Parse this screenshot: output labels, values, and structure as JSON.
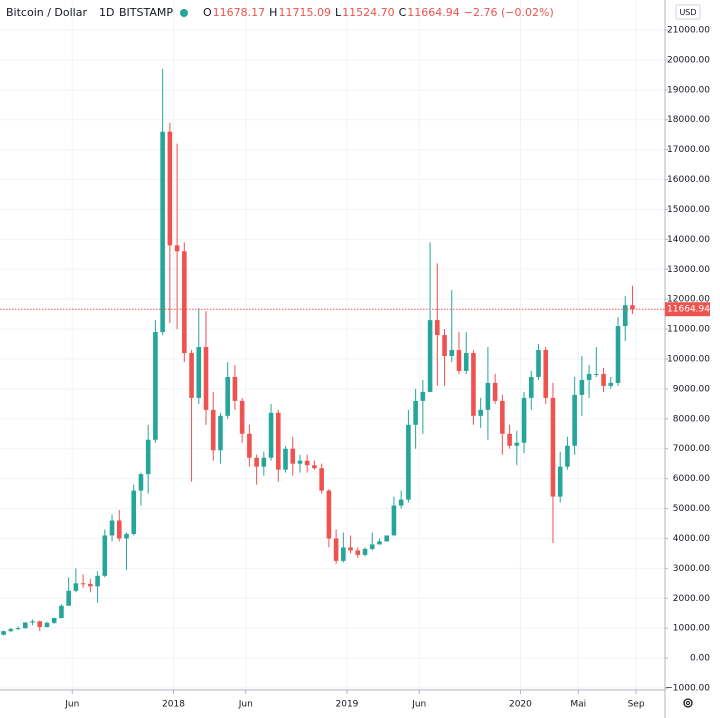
{
  "chart_data": {
    "type": "candlestick",
    "header": {
      "symbol": "Bitcoin / Dollar",
      "interval": "1D",
      "exchange": "BITSTAMP",
      "ohlc": [
        {
          "label": "O",
          "value": "11678.17"
        },
        {
          "label": "H",
          "value": "11715.09"
        },
        {
          "label": "L",
          "value": "11524.70"
        },
        {
          "label": "C",
          "value": "11664.94"
        }
      ],
      "change": "−2.76 (−0.02%)"
    },
    "currency": "USD",
    "up_color": "#26a69a",
    "down_color": "#ef5350",
    "grid": true,
    "last_price": 11664.94,
    "last_price_label": "11664.94",
    "categories": [
      null,
      null,
      null,
      null,
      null,
      null,
      null,
      null,
      null,
      null,
      null,
      null,
      null,
      null,
      null,
      null,
      null,
      null,
      null,
      null,
      null,
      null,
      null,
      null,
      null,
      null,
      null,
      null,
      null,
      null,
      null,
      null,
      null,
      null,
      null,
      null,
      null,
      null,
      null,
      null,
      null,
      null,
      null,
      null,
      null,
      null,
      null,
      null,
      null,
      null,
      null,
      null,
      null,
      null,
      null,
      null,
      null,
      null,
      null,
      null,
      null,
      null,
      null,
      null,
      null,
      null,
      null,
      null,
      null,
      null,
      null,
      null,
      null,
      null,
      null,
      null,
      null,
      null,
      null,
      null,
      null,
      null,
      null,
      null,
      null,
      null,
      null,
      null
    ],
    "values": [
      [
        780,
        920,
        760,
        900
      ],
      [
        900,
        1010,
        880,
        970
      ],
      [
        970,
        1060,
        940,
        1000
      ],
      [
        1000,
        1200,
        990,
        1190
      ],
      [
        1190,
        1290,
        1100,
        1230
      ],
      [
        1230,
        1250,
        900,
        1040
      ],
      [
        1040,
        1220,
        1020,
        1180
      ],
      [
        1180,
        1350,
        1140,
        1340
      ],
      [
        1340,
        1800,
        1330,
        1750
      ],
      [
        1750,
        2700,
        1750,
        2250
      ],
      [
        2250,
        3000,
        2200,
        2500
      ],
      [
        2500,
        2800,
        2350,
        2480
      ],
      [
        2480,
        2650,
        2200,
        2400
      ],
      [
        2400,
        2900,
        1850,
        2750
      ],
      [
        2750,
        4300,
        2700,
        4100
      ],
      [
        4100,
        4800,
        3900,
        4600
      ],
      [
        4600,
        4950,
        3900,
        4000
      ],
      [
        4000,
        4200,
        2950,
        4150
      ],
      [
        4150,
        5800,
        4100,
        5600
      ],
      [
        5600,
        6200,
        5100,
        6150
      ],
      [
        6150,
        7800,
        5500,
        7300
      ],
      [
        7300,
        11300,
        7200,
        10900
      ],
      [
        10900,
        19700,
        10800,
        17600
      ],
      [
        17600,
        17900,
        11200,
        13800
      ],
      [
        13800,
        17200,
        11000,
        13600
      ],
      [
        13600,
        13900,
        9900,
        10200
      ],
      [
        10200,
        10300,
        5900,
        8700
      ],
      [
        8700,
        11700,
        8500,
        10400
      ],
      [
        10400,
        11600,
        7800,
        8300
      ],
      [
        8300,
        8900,
        6600,
        6950
      ],
      [
        6950,
        8200,
        6500,
        8100
      ],
      [
        8100,
        9900,
        8000,
        9400
      ],
      [
        9400,
        9800,
        8300,
        8600
      ],
      [
        8600,
        8700,
        7200,
        7500
      ],
      [
        7500,
        7800,
        6400,
        6700
      ],
      [
        6700,
        6800,
        5800,
        6400
      ],
      [
        6400,
        6900,
        6100,
        6700
      ],
      [
        6700,
        8500,
        6600,
        8200
      ],
      [
        8200,
        8300,
        5900,
        6300
      ],
      [
        6300,
        7100,
        6200,
        7000
      ],
      [
        7000,
        7400,
        6100,
        6500
      ],
      [
        6500,
        6800,
        6200,
        6600
      ],
      [
        6600,
        6800,
        6200,
        6450
      ],
      [
        6450,
        6600,
        6300,
        6350
      ],
      [
        6350,
        6500,
        5500,
        5600
      ],
      [
        5600,
        5650,
        3700,
        4000
      ],
      [
        4000,
        4300,
        3150,
        3250
      ],
      [
        3250,
        4200,
        3200,
        3700
      ],
      [
        3700,
        4100,
        3500,
        3600
      ],
      [
        3600,
        3700,
        3350,
        3450
      ],
      [
        3450,
        3700,
        3400,
        3650
      ],
      [
        3650,
        4200,
        3600,
        3800
      ],
      [
        3800,
        4000,
        3800,
        3900
      ],
      [
        3900,
        4100,
        3900,
        4100
      ],
      [
        4100,
        5400,
        4100,
        5100
      ],
      [
        5100,
        5600,
        5000,
        5300
      ],
      [
        5300,
        8300,
        5200,
        7800
      ],
      [
        7800,
        9000,
        7000,
        8600
      ],
      [
        8600,
        9300,
        7500,
        8900
      ],
      [
        8900,
        13900,
        8900,
        11300
      ],
      [
        11300,
        13200,
        9100,
        10800
      ],
      [
        10800,
        11000,
        9100,
        10100
      ],
      [
        10100,
        12300,
        9900,
        10300
      ],
      [
        10300,
        10900,
        9500,
        9600
      ],
      [
        9600,
        10900,
        9500,
        10200
      ],
      [
        10200,
        10300,
        7800,
        8100
      ],
      [
        8100,
        8700,
        7700,
        8300
      ],
      [
        8300,
        10400,
        7300,
        9200
      ],
      [
        9200,
        9500,
        8500,
        8600
      ],
      [
        8600,
        8800,
        6800,
        7500
      ],
      [
        7500,
        7800,
        7000,
        7100
      ],
      [
        7100,
        7600,
        6450,
        7200
      ],
      [
        7200,
        8900,
        6850,
        8700
      ],
      [
        8700,
        9600,
        8300,
        9400
      ],
      [
        9400,
        10500,
        9300,
        10300
      ],
      [
        10300,
        10400,
        8500,
        8700
      ],
      [
        8700,
        9200,
        3850,
        5400
      ],
      [
        5400,
        6900,
        5200,
        6400
      ],
      [
        6400,
        7400,
        6300,
        7100
      ],
      [
        7100,
        9400,
        6800,
        8800
      ],
      [
        8800,
        10100,
        8100,
        9300
      ],
      [
        9300,
        9800,
        8700,
        9500
      ],
      [
        9500,
        10400,
        9400,
        9500
      ],
      [
        9500,
        9700,
        8900,
        9100
      ],
      [
        9100,
        9400,
        9000,
        9200
      ],
      [
        9200,
        11400,
        9100,
        11100
      ],
      [
        11100,
        12100,
        10600,
        11800
      ],
      [
        11800,
        12450,
        11500,
        11664.94
      ]
    ],
    "xlim": [
      0,
      92
    ],
    "xticks": [
      {
        "value": 10,
        "label": "Jun"
      },
      {
        "value": 24,
        "label": "2018"
      },
      {
        "value": 34,
        "label": "Jun"
      },
      {
        "value": 48,
        "label": "2019"
      },
      {
        "value": 58,
        "label": "Jun"
      },
      {
        "value": 72,
        "label": "2020"
      },
      {
        "value": 80,
        "label": "Mai"
      },
      {
        "value": 88,
        "label": "Sep"
      }
    ],
    "ylim": [
      -1000,
      21000
    ],
    "yticks": [
      {
        "value": -1000,
        "label": "−1000.00"
      },
      {
        "value": 0,
        "label": "0.00"
      },
      {
        "value": 1000,
        "label": "1000.00"
      },
      {
        "value": 2000,
        "label": "2000.00"
      },
      {
        "value": 3000,
        "label": "3000.00"
      },
      {
        "value": 4000,
        "label": "4000.00"
      },
      {
        "value": 5000,
        "label": "5000.00"
      },
      {
        "value": 6000,
        "label": "6000.00"
      },
      {
        "value": 7000,
        "label": "7000.00"
      },
      {
        "value": 8000,
        "label": "8000.00"
      },
      {
        "value": 9000,
        "label": "9000.00"
      },
      {
        "value": 10000,
        "label": "10000.00"
      },
      {
        "value": 11000,
        "label": "11000.00"
      },
      {
        "value": 12000,
        "label": "12000.00"
      },
      {
        "value": 13000,
        "label": "13000.00"
      },
      {
        "value": 14000,
        "label": "14000.00"
      },
      {
        "value": 15000,
        "label": "15000.00"
      },
      {
        "value": 16000,
        "label": "16000.00"
      },
      {
        "value": 17000,
        "label": "17000.00"
      },
      {
        "value": 18000,
        "label": "18000.00"
      },
      {
        "value": 19000,
        "label": "19000.00"
      },
      {
        "value": 20000,
        "label": "20000.00"
      },
      {
        "value": 21000,
        "label": "21000.00"
      }
    ]
  }
}
